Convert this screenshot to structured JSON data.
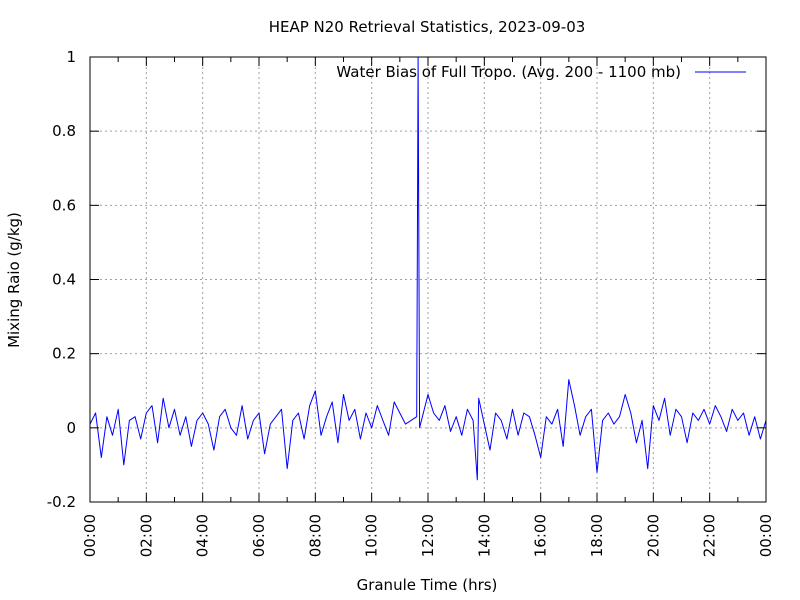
{
  "chart_data": {
    "type": "line",
    "title": "HEAP N20 Retrieval Statistics, 2023-09-03",
    "xlabel": "Granule Time (hrs)",
    "ylabel": "Mixing Raio (g/kg)",
    "xlim": [
      0,
      24
    ],
    "ylim": [
      -0.2,
      1.0
    ],
    "x_tick_labels": [
      "00:00",
      "02:00",
      "04:00",
      "06:00",
      "08:00",
      "10:00",
      "12:00",
      "14:00",
      "16:00",
      "18:00",
      "20:00",
      "22:00",
      "00:00"
    ],
    "y_tick_labels": [
      "-0.2",
      "0",
      "0.2",
      "0.4",
      "0.6",
      "0.8",
      "1"
    ],
    "grid": true,
    "legend_position": "top-right",
    "series": [
      {
        "name": "Water Bias of Full Tropo. (Avg. 200 - 1100 mb)",
        "color": "#0000ff",
        "x": [
          0.0,
          0.2,
          0.4,
          0.6,
          0.8,
          1.0,
          1.2,
          1.4,
          1.6,
          1.8,
          2.0,
          2.2,
          2.4,
          2.6,
          2.8,
          3.0,
          3.2,
          3.4,
          3.6,
          3.8,
          4.0,
          4.2,
          4.4,
          4.6,
          4.8,
          5.0,
          5.2,
          5.4,
          5.6,
          5.8,
          6.0,
          6.2,
          6.4,
          6.6,
          6.8,
          7.0,
          7.2,
          7.4,
          7.6,
          7.8,
          8.0,
          8.2,
          8.4,
          8.6,
          8.8,
          9.0,
          9.2,
          9.4,
          9.6,
          9.8,
          10.0,
          10.2,
          10.4,
          10.6,
          10.8,
          11.0,
          11.2,
          11.4,
          11.6,
          11.65,
          11.7,
          11.8,
          12.0,
          12.2,
          12.4,
          12.6,
          12.8,
          13.0,
          13.2,
          13.4,
          13.6,
          13.75,
          13.8,
          14.0,
          14.2,
          14.4,
          14.6,
          14.8,
          15.0,
          15.2,
          15.4,
          15.6,
          15.8,
          16.0,
          16.2,
          16.4,
          16.6,
          16.8,
          17.0,
          17.2,
          17.4,
          17.6,
          17.8,
          18.0,
          18.2,
          18.4,
          18.6,
          18.8,
          19.0,
          19.2,
          19.4,
          19.6,
          19.8,
          20.0,
          20.2,
          20.4,
          20.6,
          20.8,
          21.0,
          21.2,
          21.4,
          21.6,
          21.8,
          22.0,
          22.2,
          22.4,
          22.6,
          22.8,
          23.0,
          23.2,
          23.4,
          23.6,
          23.8,
          24.0
        ],
        "y": [
          0.01,
          0.04,
          -0.08,
          0.03,
          -0.02,
          0.05,
          -0.1,
          0.02,
          0.03,
          -0.03,
          0.04,
          0.06,
          -0.04,
          0.08,
          0.0,
          0.05,
          -0.02,
          0.03,
          -0.05,
          0.02,
          0.04,
          0.01,
          -0.06,
          0.03,
          0.05,
          0.0,
          -0.02,
          0.06,
          -0.03,
          0.02,
          0.04,
          -0.07,
          0.01,
          0.03,
          0.05,
          -0.11,
          0.02,
          0.04,
          -0.03,
          0.06,
          0.1,
          -0.02,
          0.03,
          0.07,
          -0.04,
          0.09,
          0.02,
          0.05,
          -0.03,
          0.04,
          0.0,
          0.06,
          0.02,
          -0.02,
          0.07,
          0.04,
          0.01,
          0.02,
          0.03,
          1.0,
          0.0,
          0.03,
          0.09,
          0.04,
          0.02,
          0.06,
          -0.01,
          0.03,
          -0.02,
          0.05,
          0.02,
          -0.14,
          0.08,
          0.01,
          -0.06,
          0.04,
          0.02,
          -0.03,
          0.05,
          -0.02,
          0.04,
          0.03,
          -0.02,
          -0.08,
          0.03,
          0.01,
          0.05,
          -0.05,
          0.13,
          0.06,
          -0.02,
          0.03,
          0.05,
          -0.12,
          0.02,
          0.04,
          0.01,
          0.03,
          0.09,
          0.04,
          -0.04,
          0.02,
          -0.11,
          0.06,
          0.02,
          0.08,
          -0.02,
          0.05,
          0.03,
          -0.04,
          0.04,
          0.02,
          0.05,
          0.01,
          0.06,
          0.03,
          -0.01,
          0.05,
          0.02,
          0.04,
          -0.02,
          0.03,
          -0.03,
          0.02
        ]
      }
    ]
  }
}
